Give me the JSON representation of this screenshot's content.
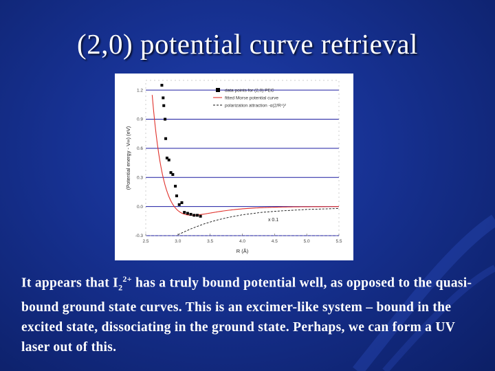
{
  "slide": {
    "title": "(2,0) potential curve retrieval",
    "body": {
      "part1": "It appears that I",
      "sub": "2",
      "sup": "2+",
      "part2": " has a truly bound potential well, as opposed to the quasi-bound ground state curves.  This is an excimer-like system – bound in the excited state, dissociating in the ground state.  Perhaps, we can form a UV laser out of this."
    }
  },
  "chart_data": {
    "type": "scatter",
    "xlabel": "R (Å)",
    "ylabel": "(Potential energy - V∞) (eV)",
    "xlim": [
      2.5,
      5.5
    ],
    "ylim": [
      -0.3,
      1.3
    ],
    "xticks": [
      "2.5",
      "3.0",
      "3.5",
      "4.0",
      "4.5",
      "5.0",
      "5.5"
    ],
    "yticks": [
      "1.2",
      "0.9",
      "0.6",
      "0.3",
      "0.0",
      "-0.3"
    ],
    "grid": "horizontal",
    "legend_position": "top-right",
    "annotation": "x 0.1",
    "series": [
      {
        "name": "data points for (2,0) PEC",
        "style": "markers",
        "x": [
          2.75,
          2.77,
          2.78,
          2.8,
          2.81,
          2.83,
          2.86,
          2.89,
          2.92,
          2.96,
          2.98,
          3.02,
          3.06,
          3.1,
          3.15,
          3.2,
          3.25,
          3.3,
          3.35
        ],
        "y": [
          1.25,
          1.12,
          1.04,
          0.9,
          0.7,
          0.5,
          0.48,
          0.35,
          0.33,
          0.21,
          0.11,
          0.02,
          0.04,
          -0.06,
          -0.07,
          -0.08,
          -0.09,
          -0.09,
          -0.1
        ]
      },
      {
        "name": "fitted Morse potential curve",
        "style": "solid",
        "color": "#e0302a",
        "model": "morse",
        "De": 0.09,
        "Re": 3.22,
        "a": 2.5
      },
      {
        "name": "polarization attraction -α(2/R⁴)²",
        "style": "dashed",
        "color": "#111111",
        "x": [
          3.0,
          3.2,
          3.4,
          3.6,
          3.8,
          4.0,
          4.3,
          4.6,
          5.0,
          5.5
        ],
        "y": [
          -0.29,
          -0.23,
          -0.18,
          -0.14,
          -0.11,
          -0.085,
          -0.06,
          -0.045,
          -0.03,
          -0.02
        ]
      }
    ]
  },
  "colors": {
    "background": "#16308f",
    "text": "#ffffff",
    "grid": "#1a1aa0",
    "fit_curve": "#e0302a"
  }
}
